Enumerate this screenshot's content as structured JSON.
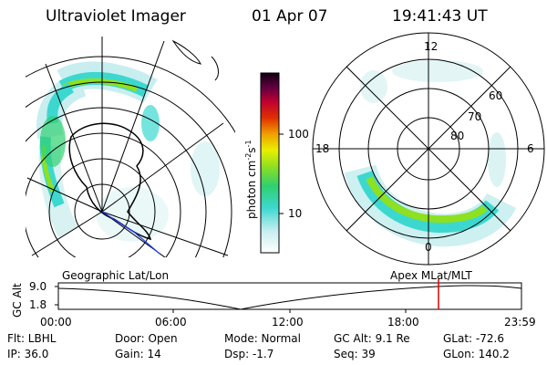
{
  "header": {
    "instrument": "Ultraviolet Imager",
    "date": "01 Apr 07",
    "time": "19:41:43 UT"
  },
  "left_map": {
    "label": "Geographic Lat/Lon"
  },
  "right_map": {
    "label": "Apex MLat/MLT",
    "mlt_labels": {
      "top": "12",
      "left": "18",
      "right": "6",
      "bottom": "0"
    },
    "lat_labels": [
      "60",
      "70",
      "80"
    ]
  },
  "colorbar": {
    "label": "photon cm",
    "sup1": "-2",
    "mid": "s",
    "sup2": "-1",
    "ticks": [
      "100",
      "10"
    ]
  },
  "altitude_plot": {
    "ylabel": "GC Alt",
    "yticks": [
      "9.0",
      "1.8"
    ],
    "xticks": [
      "00:00",
      "06:00",
      "12:00",
      "18:00",
      "23:59"
    ],
    "marker_time_hours": 19.7
  },
  "info": {
    "flt": "Flt: LBHL",
    "ip": "IP: 36.0",
    "door": "Door: Open",
    "gain": "Gain: 14",
    "mode": "Mode: Normal",
    "dsp": "Dsp:    -1.7",
    "gcalt": "GC Alt: 9.1 Re",
    "seq": "Seq: 39",
    "glat": "GLat: -72.6",
    "glon": "GLon: 140.2"
  },
  "colors": {
    "marker": "#e00000",
    "track": "#1a3cff"
  }
}
